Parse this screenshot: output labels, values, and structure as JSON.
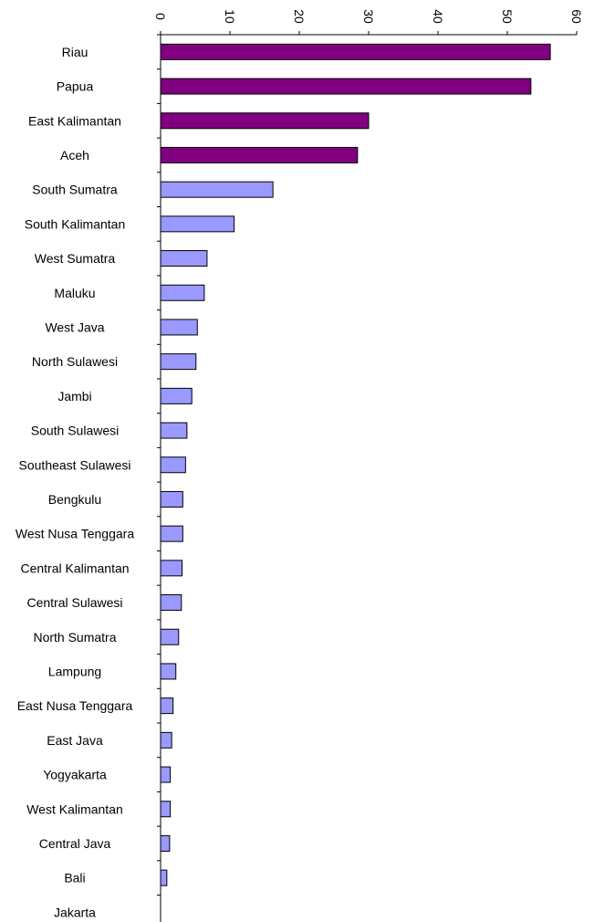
{
  "chart_data": {
    "type": "bar",
    "orientation": "horizontal",
    "categories": [
      "Riau",
      "Papua",
      "East Kalimantan",
      "Aceh",
      "South Sumatra",
      "South Kalimantan",
      "West Sumatra",
      "Maluku",
      "West Java",
      "North Sulawesi",
      "Jambi",
      "South Sulawesi",
      "Southeast Sulawesi",
      "Bengkulu",
      "West Nusa Tenggara",
      "Central Kalimantan",
      "Central Sulawesi",
      "North Sumatra",
      "Lampung",
      "East Nusa Tenggara",
      "East Java",
      "Yogyakarta",
      "West Kalimantan",
      "Central Java",
      "Bali",
      "Jakarta"
    ],
    "values": [
      56.2,
      53.4,
      30.0,
      28.4,
      16.2,
      10.6,
      6.7,
      6.3,
      5.3,
      5.1,
      4.5,
      3.8,
      3.6,
      3.2,
      3.2,
      3.1,
      3.0,
      2.6,
      2.2,
      1.8,
      1.6,
      1.4,
      1.4,
      1.3,
      0.9,
      0
    ],
    "highlight_count": 4,
    "colors": {
      "highlight": "#800080",
      "normal": "#9999ff",
      "outline": "#000000"
    },
    "xlim": [
      0,
      60
    ],
    "xticks": [
      "0",
      "10",
      "20",
      "30",
      "40",
      "50",
      "60"
    ],
    "tick_label_rotation": "90deg clockwise",
    "axis_position": "top",
    "title": "",
    "xlabel": "",
    "ylabel": "",
    "grid": false,
    "legend": "none"
  }
}
